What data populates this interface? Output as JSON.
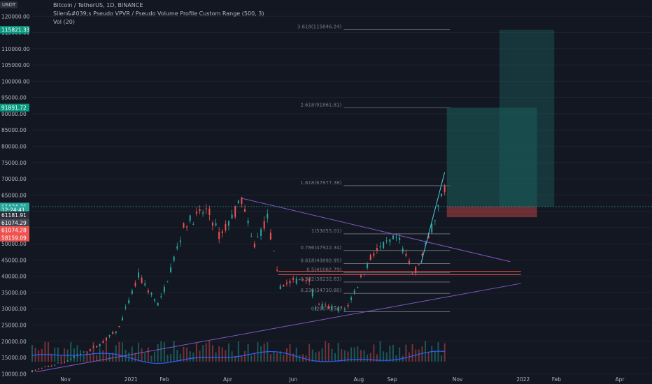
{
  "header": {
    "currency_badge": "USDT",
    "symbol_line": "Bitcoin / TetherUS, 1D, BINANCE",
    "indicator_line": "Silen&#039;s Pseudo VPVR / Pseudo Volume Profile Custom Range (500, 3)",
    "volume_line": "Vol (20)"
  },
  "colors": {
    "background": "#131722",
    "grid": "#1e222d",
    "axis_text": "#b2b5be",
    "up": "#26a69a",
    "down": "#ef5350",
    "volume_ma": "#2962ff",
    "trendline": "#7e57c2",
    "target_box": "#1b5e5a"
  },
  "chart_data": {
    "type": "line",
    "series": [
      {
        "values": [
          {
            "x": "2020-10-01",
            "y": 10800
          },
          {
            "x": "2020-11-01",
            "y": 13800
          },
          {
            "x": "2020-12-01",
            "y": 18500
          },
          {
            "x": "2020-12-20",
            "y": 23500
          },
          {
            "x": "2021-01-08",
            "y": 40000
          },
          {
            "x": "2021-01-27",
            "y": 31000
          },
          {
            "x": "2021-02-20",
            "y": 56000
          },
          {
            "x": "2021-03-13",
            "y": 60500
          },
          {
            "x": "2021-03-25",
            "y": 52000
          },
          {
            "x": "2021-04-14",
            "y": 63500
          },
          {
            "x": "2021-04-25",
            "y": 49000
          },
          {
            "x": "2021-05-08",
            "y": 58000
          },
          {
            "x": "2021-05-19",
            "y": 37000
          },
          {
            "x": "2021-06-15",
            "y": 40000
          },
          {
            "x": "2021-06-22",
            "y": 31000
          },
          {
            "x": "2021-07-20",
            "y": 29800
          },
          {
            "x": "2021-08-14",
            "y": 47000
          },
          {
            "x": "2021-09-06",
            "y": 52000
          },
          {
            "x": "2021-09-21",
            "y": 40500
          },
          {
            "x": "2021-10-01",
            "y": 48000
          },
          {
            "x": "2021-10-15",
            "y": 62000
          },
          {
            "x": "2021-10-20",
            "y": 66000
          },
          {
            "x": "2021-10-22",
            "y": 61434.76
          }
        ]
      }
    ],
    "y_axis": {
      "ticks": [
        "120000.00",
        "115000.00",
        "110000.00",
        "105000.00",
        "100000.00",
        "95000.00",
        "90000.00",
        "85000.00",
        "80000.00",
        "75000.00",
        "70000.00",
        "65000.00",
        "60000.00",
        "55000.00",
        "50000.00",
        "45000.00",
        "40000.00",
        "35000.00",
        "30000.00",
        "25000.00",
        "20000.00",
        "15000.00",
        "10000.00"
      ],
      "range": [
        9000,
        125000
      ]
    },
    "x_axis": {
      "ticks": [
        "Nov",
        "2021",
        "Feb",
        "Apr",
        "Jun",
        "Aug",
        "Sep",
        "Nov",
        "2022",
        "Feb",
        "Apr"
      ],
      "range": [
        "2020-10-01",
        "2022-05-01"
      ]
    },
    "price_labels": [
      {
        "text": "115821.33",
        "y": 115821.33,
        "color": "#089981"
      },
      {
        "text": "91891.72",
        "y": 91891.72,
        "color": "#089981"
      },
      {
        "text": "61434.76",
        "y": 61434.76,
        "color": "#26a69a"
      },
      {
        "text": "12:24:41",
        "y": 60400,
        "color": "#26a69a"
      },
      {
        "text": "61181.91",
        "y": 58800,
        "color": "#2a2e39"
      },
      {
        "text": "61074.29",
        "y": 56500,
        "color": "#434651"
      },
      {
        "text": "61074.28",
        "y": 54200,
        "color": "#ef5350"
      },
      {
        "text": "58159.09",
        "y": 51900,
        "color": "#ef5350"
      }
    ],
    "fib_levels": [
      {
        "label": "3.618(115846.24)",
        "y": 115846.24
      },
      {
        "label": "2.618(91861.81)",
        "y": 91861.81
      },
      {
        "label": "1.618(67877.38)",
        "y": 67877.38
      },
      {
        "label": "1(53055.01)",
        "y": 53055.01
      },
      {
        "label": "0.786(47922.34)",
        "y": 47922.34
      },
      {
        "label": "0.618(43892.95)",
        "y": 43892.95
      },
      {
        "label": "0.5(41062.79)",
        "y": 41062.79
      },
      {
        "label": "0.382(38232.63)",
        "y": 38232.63
      },
      {
        "label": "0.236(34730.80)",
        "y": 34730.8
      },
      {
        "label": "0(29070.58)",
        "y": 29070.58
      }
    ]
  }
}
